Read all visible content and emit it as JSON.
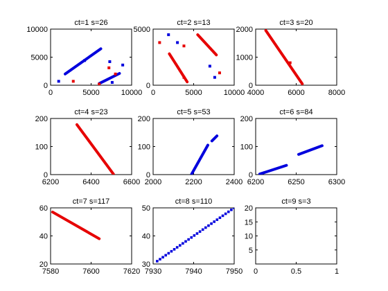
{
  "chart_data": [
    {
      "type": "scatter",
      "title": "ct=1 s=26",
      "xlim": [
        0,
        10000
      ],
      "ylim": [
        0,
        10000
      ],
      "xticks": [
        "0",
        "5000",
        "10000"
      ],
      "yticks": [
        "0",
        "5000",
        "10000"
      ],
      "colors": {
        "red": "#e60000",
        "blue": "#0000dd"
      },
      "segments": [
        {
          "color": "blue",
          "from": [
            1800,
            2000
          ],
          "to": [
            6200,
            6500
          ]
        },
        {
          "color": "blue",
          "from": [
            6000,
            300
          ],
          "to": [
            8500,
            2100
          ]
        }
      ],
      "points": [
        {
          "color": "blue",
          "x": 1000,
          "y": 700
        },
        {
          "color": "blue",
          "x": 4200,
          "y": 4400
        },
        {
          "color": "blue",
          "x": 7300,
          "y": 4200
        },
        {
          "color": "blue",
          "x": 8900,
          "y": 3600
        },
        {
          "color": "blue",
          "x": 7600,
          "y": 500
        },
        {
          "color": "red",
          "x": 2800,
          "y": 700
        },
        {
          "color": "red",
          "x": 7200,
          "y": 3100
        },
        {
          "color": "red",
          "x": 8000,
          "y": 2000
        },
        {
          "color": "red",
          "x": 6000,
          "y": 200
        }
      ]
    },
    {
      "type": "scatter",
      "title": "ct=2 s=13",
      "xlim": [
        0,
        10000
      ],
      "ylim": [
        0,
        5000
      ],
      "xticks": [
        "0",
        "5000",
        "10000"
      ],
      "yticks": [
        "0",
        "5000"
      ],
      "colors": {
        "red": "#e60000",
        "blue": "#0000dd"
      },
      "segments": [
        {
          "color": "red",
          "from": [
            2000,
            2800
          ],
          "to": [
            4200,
            300
          ]
        },
        {
          "color": "red",
          "from": [
            5500,
            4500
          ],
          "to": [
            7800,
            2700
          ]
        }
      ],
      "points": [
        {
          "color": "red",
          "x": 800,
          "y": 3800
        },
        {
          "color": "red",
          "x": 3800,
          "y": 3500
        },
        {
          "color": "red",
          "x": 3800,
          "y": 700
        },
        {
          "color": "red",
          "x": 8200,
          "y": 1100
        },
        {
          "color": "blue",
          "x": 1900,
          "y": 4500
        },
        {
          "color": "blue",
          "x": 3000,
          "y": 3800
        },
        {
          "color": "blue",
          "x": 7000,
          "y": 1700
        },
        {
          "color": "blue",
          "x": 7600,
          "y": 700
        }
      ]
    },
    {
      "type": "scatter",
      "title": "ct=3 s=20",
      "xlim": [
        4000,
        8000
      ],
      "ylim": [
        0,
        2000
      ],
      "xticks": [
        "4000",
        "6000",
        "8000"
      ],
      "yticks": [
        "0",
        "1000",
        "2000"
      ],
      "colors": {
        "red": "#e60000",
        "blue": "#0000dd"
      },
      "segments": [
        {
          "color": "red",
          "from": [
            4500,
            1950
          ],
          "to": [
            6300,
            50
          ]
        }
      ],
      "points": [
        {
          "color": "red",
          "x": 5700,
          "y": 800
        }
      ]
    },
    {
      "type": "scatter",
      "title": "ct=4 s=23",
      "xlim": [
        6200,
        6600
      ],
      "ylim": [
        0,
        200
      ],
      "xticks": [
        "6200",
        "6400",
        "6600"
      ],
      "yticks": [
        "0",
        "100",
        "200"
      ],
      "colors": {
        "red": "#e60000",
        "blue": "#0000dd"
      },
      "segments": [
        {
          "color": "red",
          "from": [
            6330,
            178
          ],
          "to": [
            6510,
            2
          ]
        }
      ],
      "points": []
    },
    {
      "type": "scatter",
      "title": "ct=5 s=53",
      "xlim": [
        2000,
        2400
      ],
      "ylim": [
        0,
        200
      ],
      "xticks": [
        "2000",
        "2200",
        "2400"
      ],
      "yticks": [
        "0",
        "100",
        "200"
      ],
      "colors": {
        "red": "#e60000",
        "blue": "#0000dd"
      },
      "segments": [
        {
          "color": "blue",
          "from": [
            2190,
            2
          ],
          "to": [
            2270,
            105
          ]
        },
        {
          "color": "blue",
          "from": [
            2290,
            120
          ],
          "to": [
            2315,
            138
          ]
        }
      ],
      "points": []
    },
    {
      "type": "scatter",
      "title": "ct=6 s=84",
      "xlim": [
        6200,
        6300
      ],
      "ylim": [
        0,
        200
      ],
      "xticks": [
        "6200",
        "6250",
        "6300"
      ],
      "yticks": [
        "0",
        "100",
        "200"
      ],
      "colors": {
        "red": "#e60000",
        "blue": "#0000dd"
      },
      "segments": [
        {
          "color": "blue",
          "from": [
            6205,
            2
          ],
          "to": [
            6238,
            33
          ]
        },
        {
          "color": "blue",
          "from": [
            6253,
            72
          ],
          "to": [
            6282,
            103
          ]
        }
      ],
      "points": []
    },
    {
      "type": "scatter",
      "title": "ct=7 s=117",
      "xlim": [
        7580,
        7620
      ],
      "ylim": [
        20,
        60
      ],
      "xticks": [
        "7580",
        "7600",
        "7620"
      ],
      "yticks": [
        "20",
        "40",
        "60"
      ],
      "colors": {
        "red": "#e60000",
        "blue": "#0000dd"
      },
      "segments": [
        {
          "color": "red",
          "from": [
            7581,
            57
          ],
          "to": [
            7604,
            38
          ]
        }
      ],
      "points": []
    },
    {
      "type": "scatter",
      "title": "ct=8 s=110",
      "xlim": [
        7930,
        7950
      ],
      "ylim": [
        30,
        50
      ],
      "xticks": [
        "7930",
        "7940",
        "7950"
      ],
      "yticks": [
        "30",
        "40",
        "50"
      ],
      "colors": {
        "red": "#e60000",
        "blue": "#0000dd"
      },
      "segments": [],
      "dotted_segments": [
        {
          "color": "blue",
          "from": [
            7931,
            31
          ],
          "to": [
            7950,
            50
          ],
          "count": 28
        }
      ],
      "points": []
    },
    {
      "type": "scatter",
      "title": "ct=9 s=3",
      "xlim": [
        0,
        1
      ],
      "ylim": [
        0,
        20
      ],
      "xticks": [
        "0",
        "0.5",
        "1"
      ],
      "yticks": [
        "5",
        "10",
        "15",
        "20"
      ],
      "colors": {
        "red": "#e60000",
        "blue": "#0000dd"
      },
      "segments": [],
      "points": []
    }
  ]
}
